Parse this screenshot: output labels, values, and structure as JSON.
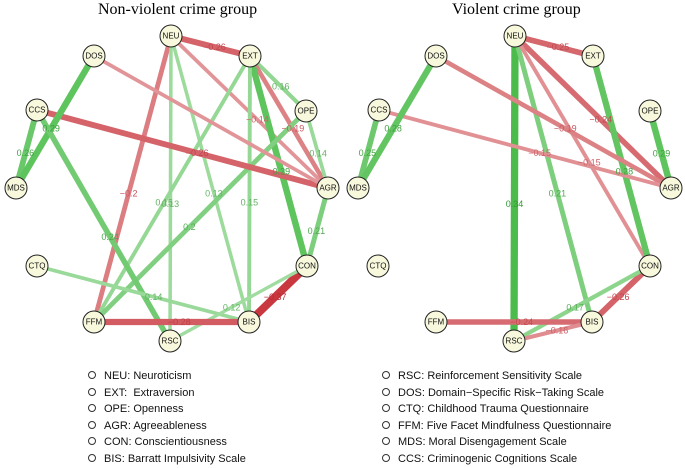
{
  "panels": [
    {
      "title": "Non-violent crime group",
      "nodes": [
        "NEU",
        "EXT",
        "OPE",
        "AGR",
        "CON",
        "BIS",
        "RSC",
        "FFM",
        "CTQ",
        "MDS",
        "CCS",
        "DOS"
      ],
      "edges": [
        {
          "from": "NEU",
          "to": "EXT",
          "weight": -0.26,
          "label": "−0.26"
        },
        {
          "from": "NEU",
          "to": "AGR",
          "weight": -0.14,
          "label": "−0.14"
        },
        {
          "from": "NEU",
          "to": "FFM",
          "weight": -0.2,
          "label": "−0.2"
        },
        {
          "from": "NEU",
          "to": "RSC",
          "weight": 0.13,
          "label": "0.13"
        },
        {
          "from": "NEU",
          "to": "BIS",
          "weight": 0.13,
          "label": "0.13"
        },
        {
          "from": "EXT",
          "to": "OPE",
          "weight": 0.16,
          "label": "0.16"
        },
        {
          "from": "EXT",
          "to": "AGR",
          "weight": -0.19,
          "label": "−0.19"
        },
        {
          "from": "EXT",
          "to": "CON",
          "weight": 0.29,
          "label": "0.29"
        },
        {
          "from": "EXT",
          "to": "BIS",
          "weight": 0.15,
          "label": "0.15"
        },
        {
          "from": "EXT",
          "to": "FFM",
          "weight": 0.15,
          "label": "0.15"
        },
        {
          "from": "OPE",
          "to": "AGR",
          "weight": 0.14,
          "label": "0.14"
        },
        {
          "from": "OPE",
          "to": "FFM",
          "weight": 0.2,
          "label": "0.2"
        },
        {
          "from": "AGR",
          "to": "CON",
          "weight": 0.21,
          "label": "0.21"
        },
        {
          "from": "CCS",
          "to": "AGR",
          "weight": -0.26,
          "label": "−0.26"
        },
        {
          "from": "CCS",
          "to": "MDS",
          "weight": 0.26,
          "label": "0.26"
        },
        {
          "from": "DOS",
          "to": "MDS",
          "weight": 0.29,
          "label": "0.29"
        },
        {
          "from": "DOS",
          "to": "AGR",
          "weight": -0.14,
          "label": ""
        },
        {
          "from": "CCS",
          "to": "RSC",
          "weight": 0.24,
          "label": "0.24"
        },
        {
          "from": "CON",
          "to": "BIS",
          "weight": -0.37,
          "label": "−0.37"
        },
        {
          "from": "CTQ",
          "to": "BIS",
          "weight": 0.14,
          "label": "0.14"
        },
        {
          "from": "CON",
          "to": "RSC",
          "weight": 0.12,
          "label": "0.12"
        },
        {
          "from": "FFM",
          "to": "BIS",
          "weight": -0.28,
          "label": "−0.28"
        }
      ]
    },
    {
      "title": "Violent crime group",
      "nodes": [
        "NEU",
        "EXT",
        "OPE",
        "AGR",
        "CON",
        "BIS",
        "RSC",
        "FFM",
        "CTQ",
        "MDS",
        "CCS",
        "DOS"
      ],
      "edges": [
        {
          "from": "NEU",
          "to": "EXT",
          "weight": -0.25,
          "label": "−0.25"
        },
        {
          "from": "NEU",
          "to": "RSC",
          "weight": 0.34,
          "label": "0.34"
        },
        {
          "from": "NEU",
          "to": "AGR",
          "weight": -0.24,
          "label": "−0.24"
        },
        {
          "from": "NEU",
          "to": "BIS",
          "weight": 0.21,
          "label": "0.21"
        },
        {
          "from": "NEU",
          "to": "CON",
          "weight": -0.15,
          "label": "−0.15"
        },
        {
          "from": "EXT",
          "to": "CON",
          "weight": 0.28,
          "label": "0.28"
        },
        {
          "from": "OPE",
          "to": "AGR",
          "weight": 0.29,
          "label": "0.29"
        },
        {
          "from": "DOS",
          "to": "AGR",
          "weight": -0.19,
          "label": "−0.19"
        },
        {
          "from": "CCS",
          "to": "AGR",
          "weight": -0.15,
          "label": "−0.15"
        },
        {
          "from": "CCS",
          "to": "MDS",
          "weight": 0.25,
          "label": "0.25"
        },
        {
          "from": "DOS",
          "to": "MDS",
          "weight": 0.28,
          "label": "0.28"
        },
        {
          "from": "CON",
          "to": "BIS",
          "weight": -0.26,
          "label": "−0.26"
        },
        {
          "from": "CON",
          "to": "RSC",
          "weight": 0.17,
          "label": "0.17"
        },
        {
          "from": "FFM",
          "to": "BIS",
          "weight": -0.24,
          "label": "−0.24"
        },
        {
          "from": "RSC",
          "to": "BIS",
          "weight": -0.16,
          "label": "−0.16"
        }
      ]
    }
  ],
  "legend_left": [
    "NEU: Neuroticism",
    "EXT:  Extraversion",
    "OPE: Openness",
    "AGR: Agreeableness",
    "CON: Conscientiousness",
    "BIS: Barratt Impulsivity Scale"
  ],
  "legend_right": [
    "RSC: Reinforcement Sensitivity Scale",
    "DOS: Domain−Specific Risk−Taking Scale",
    "CTQ: Childhood Trauma Questionnaire",
    "FFM: Five Facet Mindfulness Questionnaire",
    "MDS: Moral Disengagement Scale",
    "CCS: Criminogenic Cognitions Scale"
  ],
  "colors": {
    "positive": "#3fb83f",
    "negative": "#c8383e",
    "node_fill": "#f7f8dc"
  }
}
